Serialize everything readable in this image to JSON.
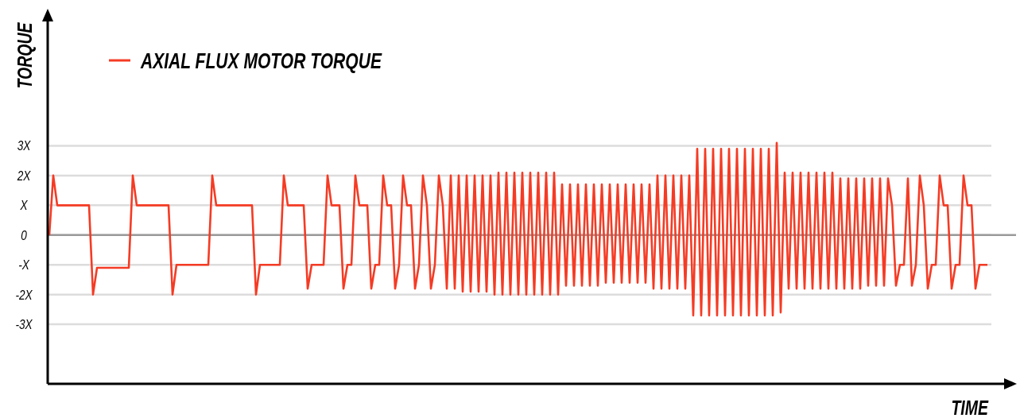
{
  "chart_data": {
    "type": "line",
    "ylabel": "TORQUE",
    "xlabel": "TIME",
    "ylim": [
      -5,
      7.5
    ],
    "yticks": [
      {
        "value": 3,
        "label": "3X"
      },
      {
        "value": 2,
        "label": "2X"
      },
      {
        "value": 1,
        "label": "X"
      },
      {
        "value": 0,
        "label": "0"
      },
      {
        "value": -1,
        "label": "-X"
      },
      {
        "value": -2,
        "label": "-2X"
      },
      {
        "value": -3,
        "label": "-3X"
      }
    ],
    "tick_labels": "y",
    "grid": "y",
    "legend": "top left",
    "marker": "none",
    "line_style": "solid",
    "ref_lines": [
      {
        "axis": "y",
        "value": 0,
        "color": "#9a9a9a"
      }
    ],
    "categories": [
      null,
      null,
      null,
      null,
      null,
      null,
      null,
      null,
      null,
      null,
      null,
      null,
      null,
      null,
      null,
      null,
      null,
      null,
      null,
      null,
      null,
      null,
      null,
      null,
      null,
      null,
      null,
      null,
      null,
      null,
      null,
      null,
      null,
      null,
      null,
      null,
      null,
      null,
      null,
      null,
      null,
      null,
      null,
      null,
      null,
      null,
      null,
      null,
      null,
      null,
      null,
      null,
      null,
      null,
      null,
      null,
      null,
      null,
      null,
      null,
      null,
      null,
      null,
      null,
      null,
      null,
      null,
      null,
      null,
      null,
      null,
      null,
      null,
      null,
      null,
      null,
      null,
      null,
      null,
      null,
      null,
      null,
      null,
      null,
      null,
      null,
      null,
      null,
      null,
      null,
      null,
      null,
      null,
      null,
      null,
      null,
      null,
      null,
      null,
      null,
      null,
      null,
      null,
      null,
      null,
      null,
      null,
      null,
      null,
      null,
      null,
      null,
      null,
      null,
      null,
      null,
      null,
      null,
      null,
      null,
      null,
      null,
      null,
      null,
      null,
      null,
      null,
      null,
      null,
      null,
      null,
      null,
      null,
      null,
      null,
      null,
      null,
      null,
      null,
      null,
      null,
      null,
      null,
      null,
      null,
      null,
      null,
      null,
      null,
      null,
      null,
      null,
      null,
      null,
      null,
      null,
      null,
      null,
      null,
      null,
      null,
      null,
      null,
      null,
      null,
      null,
      null,
      null,
      null,
      null,
      null,
      null,
      null,
      null,
      null,
      null,
      null,
      null,
      null,
      null,
      null,
      null,
      null,
      null,
      null,
      null,
      null,
      null,
      null,
      null,
      null,
      null,
      null,
      null,
      null,
      null,
      null,
      null,
      null,
      null,
      null,
      null,
      null,
      null,
      null,
      null,
      null,
      null,
      null,
      null,
      null,
      null,
      null,
      null,
      null,
      null,
      null,
      null,
      null,
      null,
      null,
      null,
      null,
      null,
      null,
      null,
      null,
      null,
      null,
      null,
      null,
      null,
      null,
      null,
      null,
      null,
      null
    ],
    "series": [
      {
        "name": "AXIAL FLUX MOTOR TORQUE",
        "color": "#f53b24",
        "values": [
          0,
          2,
          1,
          1,
          1,
          1,
          1,
          1,
          1,
          1,
          1,
          -2,
          -1.1,
          -1.1,
          -1.1,
          -1.1,
          -1.1,
          -1.1,
          -1.1,
          -1.1,
          -1.1,
          2,
          1,
          1,
          1,
          1,
          1,
          1,
          1,
          1,
          1,
          -2,
          -1,
          -1,
          -1,
          -1,
          -1,
          -1,
          -1,
          -1,
          -1,
          2,
          1,
          1,
          1,
          1,
          1,
          1,
          1,
          1,
          1,
          1,
          -2,
          -1,
          -1,
          -1,
          -1,
          -1,
          -1,
          2,
          1,
          1,
          1,
          1,
          1,
          -1.8,
          -1,
          -1,
          -1,
          -1,
          2,
          1,
          1,
          1,
          -1.8,
          -1,
          -1,
          2,
          1,
          1,
          1,
          -1.8,
          -1,
          -1,
          2,
          1,
          1,
          -1.8,
          -1,
          2,
          1,
          1,
          -1.8,
          -1,
          2,
          1,
          -1.8,
          -1,
          2,
          1,
          -1.8,
          2,
          -1.8,
          2,
          -1.9,
          2,
          -1.9,
          2,
          -1.9,
          2,
          -1.9,
          2,
          -2,
          2.1,
          -2,
          2.1,
          -2,
          2.1,
          -2,
          2.1,
          -2,
          2.1,
          -2,
          2.1,
          -2,
          2.1,
          -2,
          2.1,
          -2,
          1.7,
          -1.7,
          1.7,
          -1.7,
          1.7,
          -1.7,
          1.7,
          -1.7,
          1.7,
          -1.7,
          1.7,
          -1.6,
          1.7,
          -1.6,
          1.7,
          -1.6,
          1.7,
          -1.6,
          1.7,
          -1.6,
          1.7,
          -1.6,
          1.7,
          -1.8,
          2,
          -1.8,
          2,
          -1.8,
          2,
          -1.8,
          2,
          -1.8,
          2,
          -2.7,
          2.9,
          -2.7,
          2.9,
          -2.7,
          2.9,
          -2.7,
          2.9,
          -2.7,
          2.9,
          -2.7,
          2.9,
          -2.7,
          2.9,
          -2.7,
          2.9,
          -2.7,
          2.9,
          -2.7,
          2.9,
          -2.7,
          3.1,
          -2.6,
          2.1,
          -1.8,
          2.1,
          -1.8,
          2.1,
          -1.8,
          2.1,
          -1.8,
          2.1,
          -1.8,
          2.1,
          -1.8,
          2.1,
          -1.8,
          1.9,
          -1.8,
          1.9,
          -1.8,
          1.9,
          -1.8,
          1.9,
          -1.7,
          1.9,
          -1.7,
          1.9,
          -1.7,
          1.9,
          1,
          -1.7,
          -1,
          -1,
          1.9,
          -1.7,
          -1,
          2,
          1,
          -1.8,
          -1,
          -1,
          2,
          1,
          1,
          -1.8,
          -1,
          -1,
          2,
          1,
          1,
          -1.8,
          -1,
          -1,
          -1
        ]
      }
    ]
  }
}
